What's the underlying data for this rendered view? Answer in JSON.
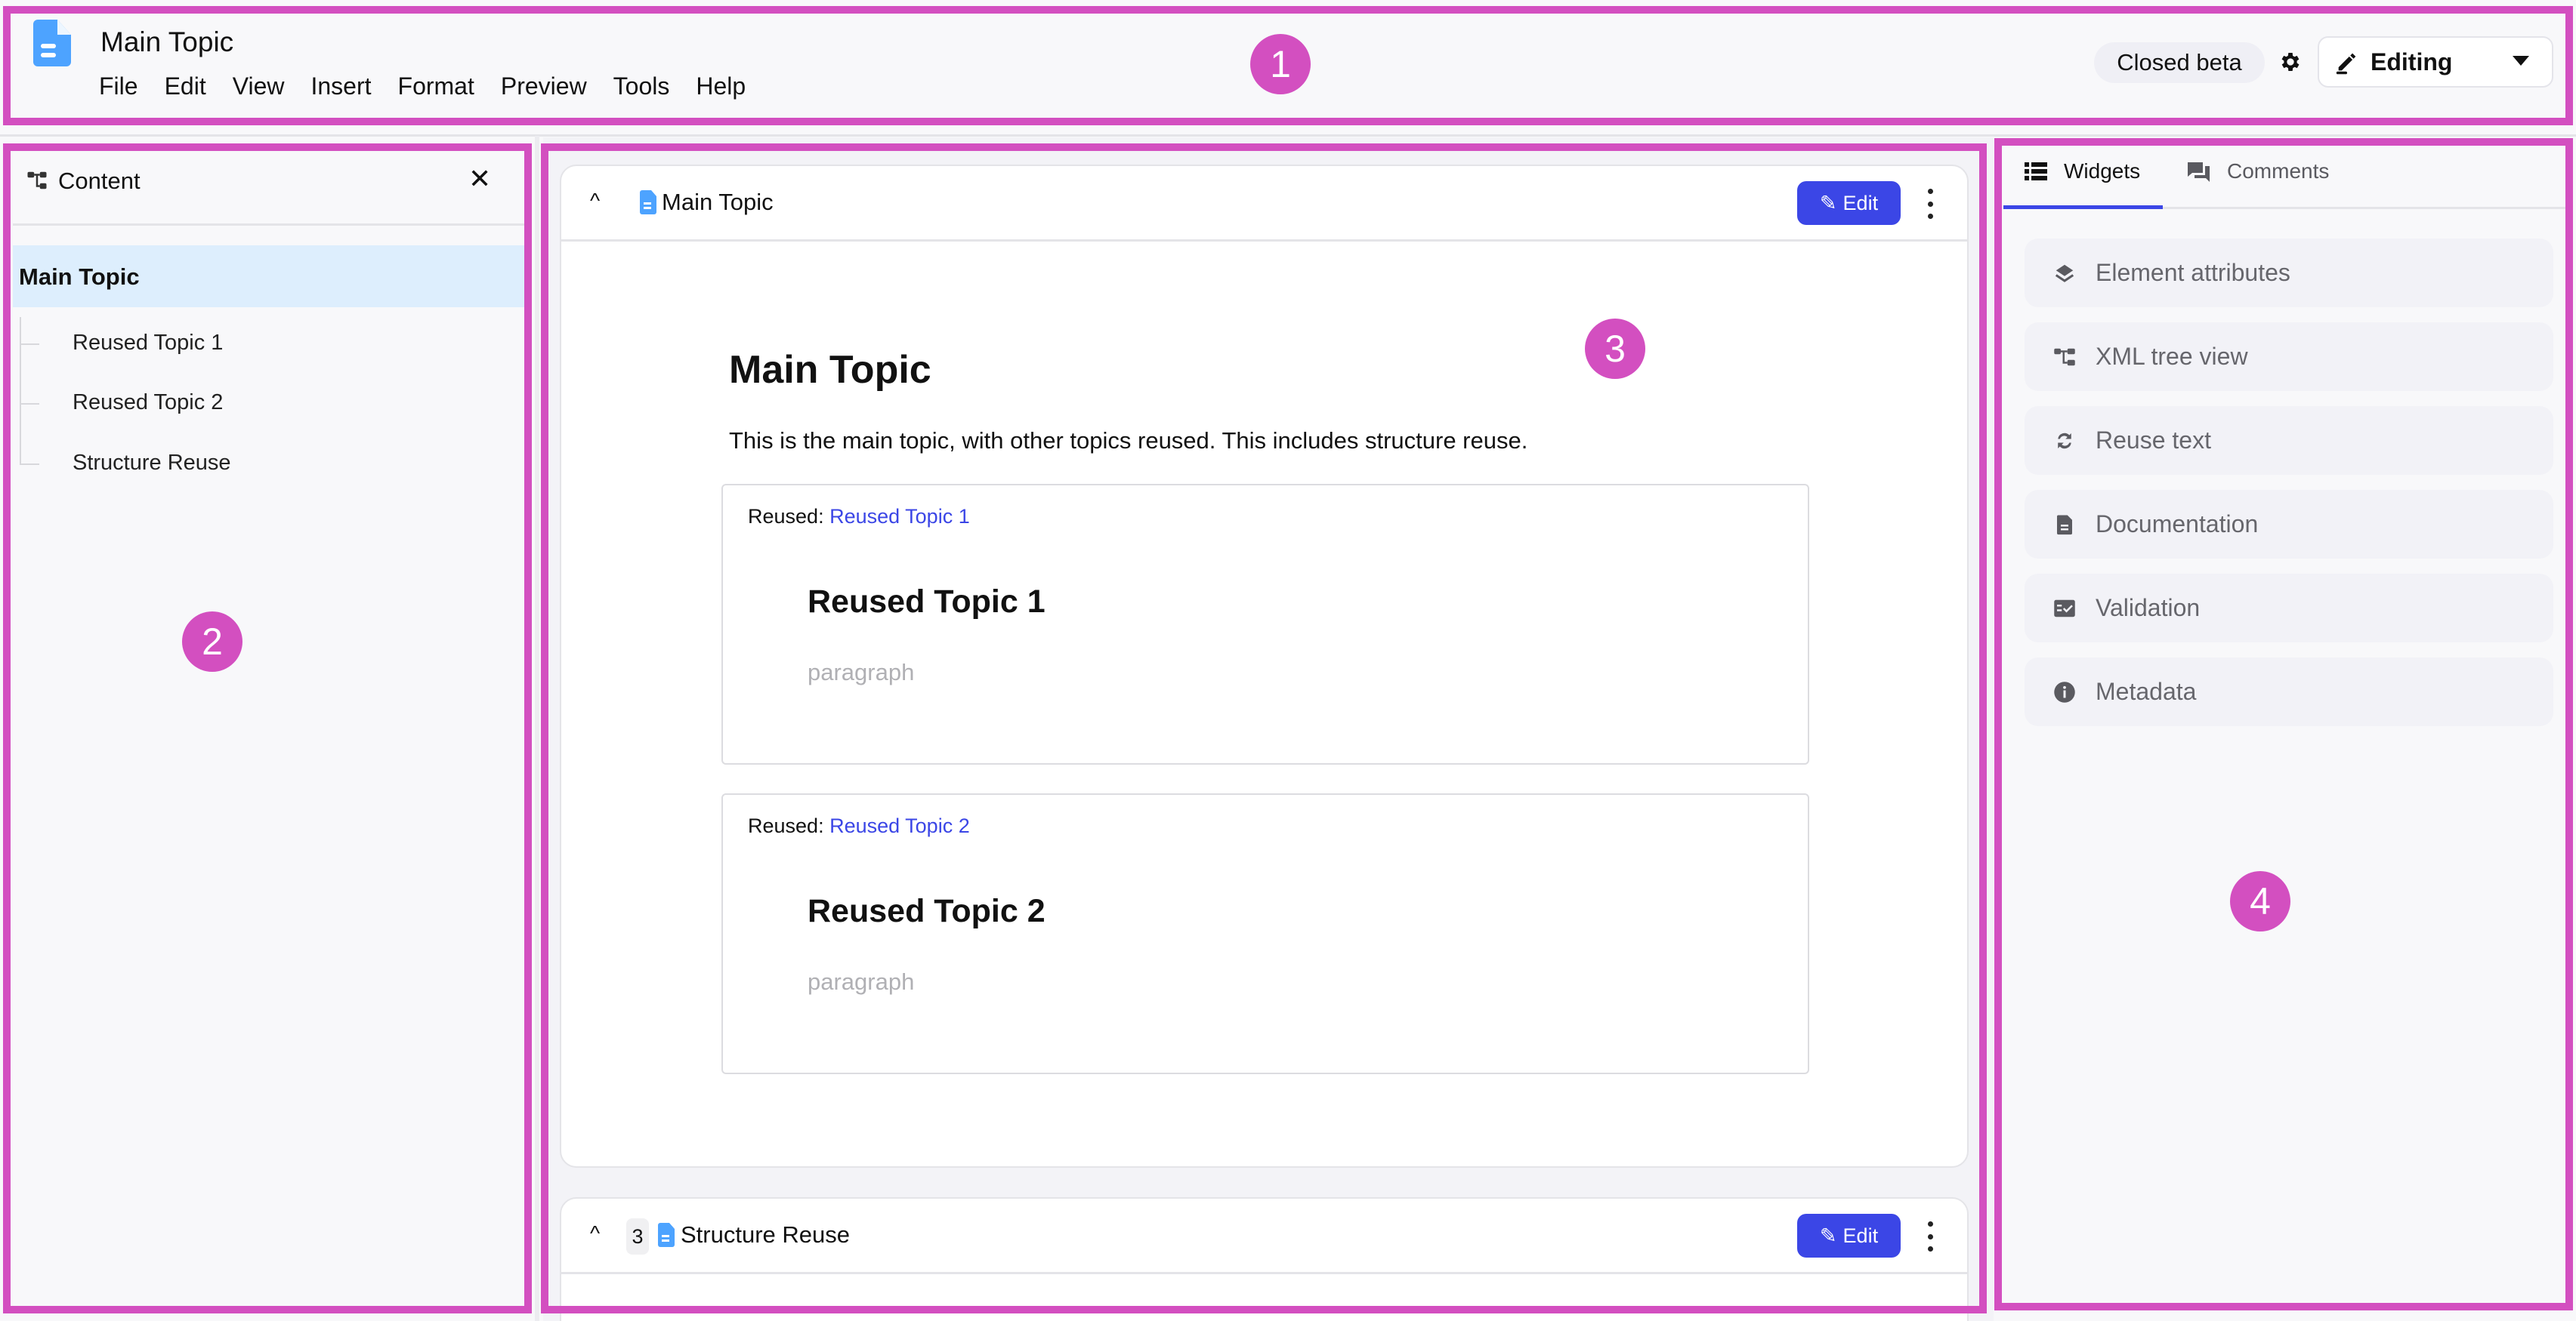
{
  "header": {
    "doc_title": "Main Topic",
    "menu": [
      "File",
      "Edit",
      "View",
      "Insert",
      "Format",
      "Preview",
      "Tools",
      "Help"
    ],
    "badge": "Closed beta",
    "mode": "Editing"
  },
  "left_panel": {
    "title": "Content",
    "selected": "Main Topic",
    "items": [
      "Reused Topic 1",
      "Reused Topic 2",
      "Structure Reuse"
    ]
  },
  "center": {
    "card1": {
      "title": "Main Topic",
      "edit_label": "Edit",
      "heading": "Main Topic",
      "paragraph": "This is the main topic, with other topics reused. This includes structure reuse.",
      "reuses": [
        {
          "label": "Reused:",
          "link": "Reused Topic 1",
          "heading": "Reused Topic 1",
          "placeholder": "paragraph"
        },
        {
          "label": "Reused:",
          "link": "Reused Topic 2",
          "heading": "Reused Topic 2",
          "placeholder": "paragraph"
        }
      ]
    },
    "card2": {
      "number": "3",
      "title": "Structure Reuse",
      "edit_label": "Edit"
    }
  },
  "right_panel": {
    "tabs": [
      {
        "label": "Widgets",
        "active": true
      },
      {
        "label": "Comments",
        "active": false
      }
    ],
    "widgets": [
      {
        "label": "Element attributes",
        "icon": "layers-icon"
      },
      {
        "label": "XML tree view",
        "icon": "tree-icon"
      },
      {
        "label": "Reuse text",
        "icon": "sync-icon"
      },
      {
        "label": "Documentation",
        "icon": "document-icon"
      },
      {
        "label": "Validation",
        "icon": "checklist-icon"
      },
      {
        "label": "Metadata",
        "icon": "info-icon"
      }
    ]
  },
  "annotations": [
    "1",
    "2",
    "3",
    "4"
  ],
  "colors": {
    "accent": "#3b46e6",
    "doc_icon": "#4da3ff",
    "annotation": "#d34fc0",
    "selected_row": "#ddeefd"
  }
}
